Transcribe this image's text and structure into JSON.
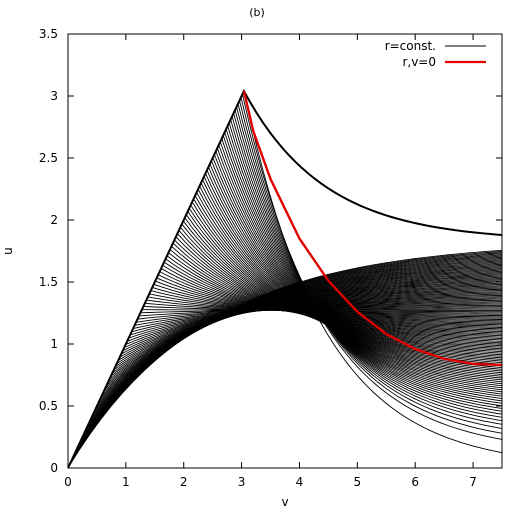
{
  "chart_data": {
    "type": "line",
    "title": "(b)",
    "xlabel": "v",
    "ylabel": "u",
    "xlim": [
      0,
      7.5
    ],
    "ylim": [
      0,
      3.5
    ],
    "grid": false,
    "legend_position": "top-right",
    "x_ticks": [
      "0",
      "1",
      "2",
      "3",
      "4",
      "5",
      "6",
      "7"
    ],
    "y_ticks": [
      "0",
      "0.5",
      "1",
      "1.5",
      "2",
      "2.5",
      "3",
      "3.5"
    ],
    "peak": {
      "v": 3.04,
      "u": 3.04
    },
    "series": [
      {
        "name": "r=const.",
        "color": "#000000",
        "description_values": {
          "count": 120,
          "u_max_at_v_7_5": 1.83
        }
      },
      {
        "name": "r,v=0",
        "color": "#e00000",
        "points": [
          [
            3.04,
            3.04
          ],
          [
            3.2,
            2.72
          ],
          [
            3.5,
            2.33
          ],
          [
            4.0,
            1.85
          ],
          [
            4.5,
            1.51
          ],
          [
            5.0,
            1.26
          ],
          [
            5.5,
            1.08
          ],
          [
            6.0,
            0.96
          ],
          [
            6.5,
            0.88
          ],
          [
            7.0,
            0.84
          ],
          [
            7.5,
            0.83
          ]
        ]
      }
    ],
    "legend": [
      {
        "label": "r=const.",
        "color": "#000000"
      },
      {
        "label": "r,v=0",
        "color": "#e00000"
      }
    ]
  }
}
